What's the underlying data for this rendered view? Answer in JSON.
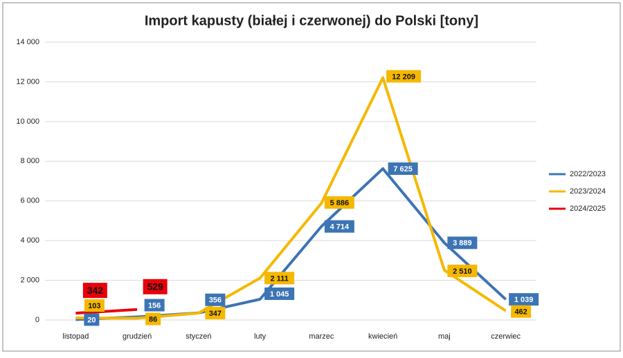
{
  "chart_data": {
    "type": "line",
    "title": "Import kapusty (białej i czerwonej) do Polski [tony]",
    "categories": [
      "listopad",
      "grudzień",
      "styczeń",
      "luty",
      "marzec",
      "kwiecień",
      "maj",
      "czerwiec"
    ],
    "series": [
      {
        "name": "2022/2023",
        "color": "#3c74b4",
        "values": [
          20,
          156,
          356,
          1045,
          4714,
          7625,
          3889,
          1039
        ],
        "value_labels": [
          "20",
          "156",
          "356",
          "1 045",
          "4 714",
          "7 625",
          "3 889",
          "1 039"
        ]
      },
      {
        "name": "2023/2024",
        "color": "#f5b800",
        "values": [
          103,
          86,
          347,
          2111,
          5886,
          12209,
          2510,
          462
        ],
        "value_labels": [
          "103",
          "86",
          "347",
          "2 111",
          "5 886",
          "12 209",
          "2 510",
          "462"
        ]
      },
      {
        "name": "2024/2025",
        "color": "#e8000b",
        "values": [
          342,
          529,
          null,
          null,
          null,
          null,
          null,
          null
        ],
        "value_labels": [
          "342",
          "529",
          null,
          null,
          null,
          null,
          null,
          null
        ]
      }
    ],
    "ylim": [
      0,
      14000
    ],
    "yticks": [
      0,
      {
        "value": 2000,
        "label": "2 000"
      },
      {
        "value": 4000,
        "label": "4 000"
      },
      {
        "value": 6000,
        "label": "6 000"
      },
      {
        "value": 8000,
        "label": "8 000"
      },
      {
        "value": 10000,
        "label": "10 000"
      },
      {
        "value": 12000,
        "label": "12 000"
      },
      {
        "value": 14000,
        "label": "14 000"
      }
    ],
    "grid": true,
    "legend": "right"
  }
}
